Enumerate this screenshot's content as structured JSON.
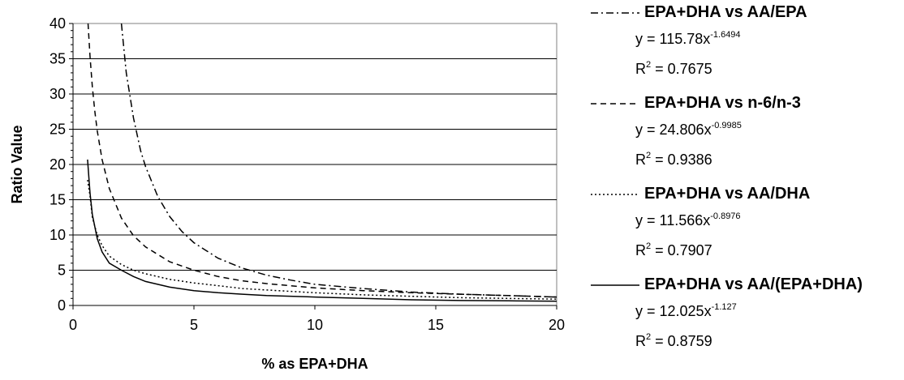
{
  "chart_data": {
    "type": "line",
    "xlabel": "% as EPA+DHA",
    "ylabel": "Ratio Value",
    "xlim": [
      0,
      20
    ],
    "ylim": [
      0,
      40
    ],
    "x_ticks": [
      "0",
      "5",
      "10",
      "15",
      "20"
    ],
    "y_ticks": [
      "0",
      "5",
      "10",
      "15",
      "20",
      "25",
      "30",
      "35",
      "40"
    ],
    "grid": "horizontal",
    "legend_position": "right",
    "series": [
      {
        "name": "EPA+DHA vs AA/EPA",
        "dash": "dash-dot",
        "equation": {
          "prefix": "y = 115.78x",
          "exponent": "-1.6494"
        },
        "r2": {
          "label": "R",
          "power": "2",
          "value": " = 0.7675"
        },
        "x": [
          2.0,
          2.2,
          2.5,
          2.8,
          3.0,
          3.5,
          4.0,
          4.5,
          5.0,
          6.0,
          7.0,
          8.0,
          9.0,
          10.0,
          12.0,
          14.0,
          16.0,
          18.0,
          20.0
        ],
        "y": [
          40.0,
          33.0,
          26.6,
          21.9,
          19.7,
          15.5,
          12.6,
          10.5,
          8.9,
          6.7,
          5.3,
          4.3,
          3.6,
          3.0,
          2.4,
          1.9,
          1.6,
          1.4,
          1.2
        ]
      },
      {
        "name": "EPA+DHA vs n-6/n-3",
        "dash": "dash",
        "equation": {
          "prefix": "y = 24.806x",
          "exponent": "-0.9985"
        },
        "r2": {
          "label": "R",
          "power": "2",
          "value": " = 0.9386"
        },
        "x": [
          0.62,
          0.7,
          0.8,
          0.9,
          1.0,
          1.2,
          1.5,
          2.0,
          2.5,
          3.0,
          4.0,
          5.0,
          6.0,
          7.0,
          8.0,
          10.0,
          12.0,
          14.0,
          16.0,
          18.0,
          20.0
        ],
        "y": [
          40.0,
          35.4,
          31.0,
          27.6,
          24.8,
          20.7,
          16.6,
          12.4,
          9.9,
          8.3,
          6.2,
          5.0,
          4.1,
          3.5,
          3.1,
          2.5,
          2.1,
          1.8,
          1.6,
          1.4,
          1.2
        ]
      },
      {
        "name": "EPA+DHA vs AA/DHA",
        "dash": "dot",
        "equation": {
          "prefix": "y = 11.566x",
          "exponent": "-0.8976"
        },
        "r2": {
          "label": "R",
          "power": "2",
          "value": " = 0.7907"
        },
        "x": [
          0.6,
          0.7,
          0.8,
          1.0,
          1.2,
          1.5,
          2.0,
          2.5,
          3.0,
          4.0,
          5.0,
          6.0,
          7.0,
          8.0,
          10.0,
          12.0,
          14.0,
          16.0,
          18.0,
          20.0
        ],
        "y": [
          17.8,
          15.6,
          12.5,
          10.0,
          8.5,
          7.0,
          5.8,
          5.0,
          4.5,
          3.7,
          3.2,
          2.8,
          2.4,
          2.2,
          1.8,
          1.5,
          1.3,
          1.1,
          1.0,
          0.9
        ]
      },
      {
        "name": "EPA+DHA vs AA/(EPA+DHA)",
        "dash": "solid",
        "equation": {
          "prefix": "y = 12.025x",
          "exponent": "-1.127"
        },
        "r2": {
          "label": "R",
          "power": "2",
          "value": " = 0.8759"
        },
        "x": [
          0.6,
          0.7,
          0.8,
          1.0,
          1.2,
          1.5,
          2.0,
          2.5,
          3.0,
          4.0,
          5.0,
          6.0,
          7.0,
          8.0,
          10.0,
          12.0,
          14.0,
          16.0,
          18.0,
          20.0
        ],
        "y": [
          20.7,
          16.0,
          12.9,
          9.5,
          7.6,
          6.0,
          5.0,
          4.1,
          3.4,
          2.6,
          2.1,
          1.8,
          1.6,
          1.4,
          1.2,
          1.0,
          0.8,
          0.7,
          0.65,
          0.6
        ]
      }
    ]
  }
}
